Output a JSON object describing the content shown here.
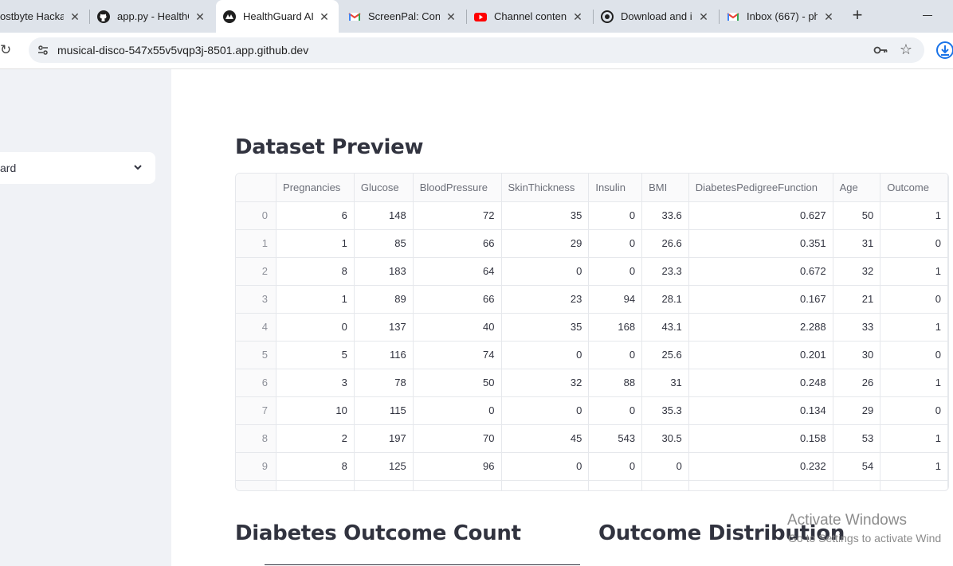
{
  "browser": {
    "tabs": [
      {
        "label": "ostbyte Hackat",
        "icon": "hackathon-favicon"
      },
      {
        "label": "app.py - HealthG",
        "icon": "github-icon"
      },
      {
        "label": "HealthGuard AI",
        "icon": "streamlit-icon",
        "active": true
      },
      {
        "label": "ScreenPal: Confi",
        "icon": "gmail-icon"
      },
      {
        "label": "Channel content",
        "icon": "youtube-icon"
      },
      {
        "label": "Download and i",
        "icon": "download-site-icon"
      },
      {
        "label": "Inbox (667) - ph",
        "icon": "gmail-icon"
      }
    ],
    "url": "musical-disco-547x55v5vqp3j-8501.app.github.dev"
  },
  "sidebar": {
    "select_value": "ard"
  },
  "main": {
    "dataset_heading": "Dataset Preview",
    "outcome_count_heading": "Diabetes Outcome Count",
    "outcome_dist_heading": "Outcome Distribution"
  },
  "table": {
    "columns": [
      "",
      "Pregnancies",
      "Glucose",
      "BloodPressure",
      "SkinThickness",
      "Insulin",
      "BMI",
      "DiabetesPedigreeFunction",
      "Age",
      "Outcome"
    ],
    "rows": [
      [
        "0",
        "6",
        "148",
        "72",
        "35",
        "0",
        "33.6",
        "0.627",
        "50",
        "1"
      ],
      [
        "1",
        "1",
        "85",
        "66",
        "29",
        "0",
        "26.6",
        "0.351",
        "31",
        "0"
      ],
      [
        "2",
        "8",
        "183",
        "64",
        "0",
        "0",
        "23.3",
        "0.672",
        "32",
        "1"
      ],
      [
        "3",
        "1",
        "89",
        "66",
        "23",
        "94",
        "28.1",
        "0.167",
        "21",
        "0"
      ],
      [
        "4",
        "0",
        "137",
        "40",
        "35",
        "168",
        "43.1",
        "2.288",
        "33",
        "1"
      ],
      [
        "5",
        "5",
        "116",
        "74",
        "0",
        "0",
        "25.6",
        "0.201",
        "30",
        "0"
      ],
      [
        "6",
        "3",
        "78",
        "50",
        "32",
        "88",
        "31",
        "0.248",
        "26",
        "1"
      ],
      [
        "7",
        "10",
        "115",
        "0",
        "0",
        "0",
        "35.3",
        "0.134",
        "29",
        "0"
      ],
      [
        "8",
        "2",
        "197",
        "70",
        "45",
        "543",
        "30.5",
        "0.158",
        "53",
        "1"
      ],
      [
        "9",
        "8",
        "125",
        "96",
        "0",
        "0",
        "0",
        "0.232",
        "54",
        "1"
      ],
      [
        "",
        "",
        "",
        "",
        "",
        "",
        "",
        "",
        "",
        ""
      ]
    ]
  },
  "watermark": {
    "line1": "Activate Windows",
    "line2": "Go to Settings to activate Wind"
  }
}
